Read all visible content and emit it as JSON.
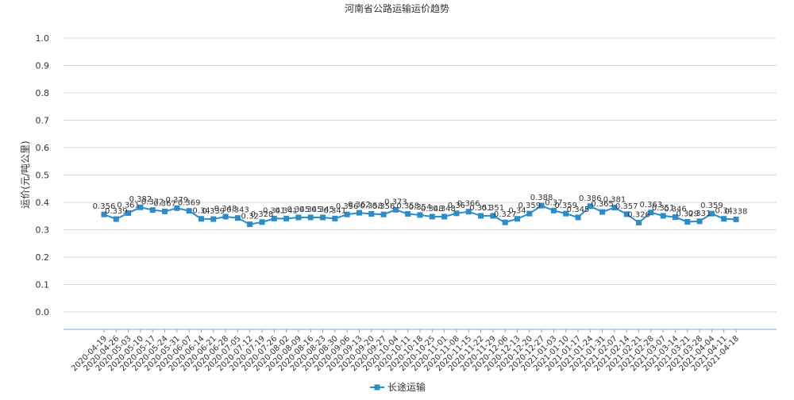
{
  "chart_data": {
    "type": "line",
    "title": "河南省公路运输运价趋势",
    "ylabel": "运价(元/吨公里)",
    "xlabel": "",
    "ylim": [
      -0.0,
      1.0
    ],
    "yticks": [
      "0.0",
      "0.1",
      "0.2",
      "0.3",
      "0.4",
      "0.5",
      "0.6",
      "0.7",
      "0.8",
      "0.9",
      "1.0"
    ],
    "grid": true,
    "legend": "bottom-center",
    "colors": {
      "series": "#2a8ccb",
      "grid": "#d9d9d9",
      "axis": "#7fa6c9",
      "text": "#333333"
    },
    "tick_labels": [
      "2020-04-19",
      "2020-04-26",
      "2020-05-03",
      "2020-05-10",
      "2020-05-17",
      "2020-05-24",
      "2020-05-31",
      "2020-06-07",
      "2020-06-14",
      "2020-06-21",
      "2020-06-28",
      "2020-07-05",
      "2020-07-12",
      "2020-07-19",
      "2020-07-26",
      "2020-08-02",
      "2020-08-09",
      "2020-08-16",
      "2020-08-23",
      "2020-08-30",
      "2020-09-06",
      "2020-09-13",
      "2020-09-20",
      "2020-09-27",
      "2020-10-04",
      "2020-10-11",
      "2020-10-18",
      "2020-10-25",
      "2020-11-01",
      "2020-11-08",
      "2020-11-15",
      "2020-11-22",
      "2020-11-29",
      "2020-12-06",
      "2020-12-13",
      "2020-12-20",
      "2020-12-27",
      "2021-01-03",
      "2021-01-10",
      "2021-01-17",
      "2021-01-24",
      "2021-01-31",
      "2021-02-07",
      "2021-02-14",
      "2021-02-21",
      "2021-02-28",
      "2021-03-07",
      "2021-03-14",
      "2021-03-21",
      "2021-03-28",
      "2021-04-04",
      "2021-04-11",
      "2021-04-18"
    ],
    "series": [
      {
        "name": "长途运输",
        "x": [
          "2020-04-19",
          "2020-04-26",
          "2020-05-03",
          "2020-05-10",
          "2020-05-17",
          "2020-05-24",
          "2020-05-31",
          "2020-06-07",
          "2020-06-14",
          "2020-06-21",
          "2020-06-28",
          "2020-07-05",
          "2020-07-12",
          "2020-07-19",
          "2020-07-26",
          "2020-08-02",
          "2020-08-09",
          "2020-08-16",
          "2020-08-23",
          "2020-08-30",
          "2020-09-06",
          "2020-09-13",
          "2020-09-20",
          "2020-09-27",
          "2020-10-04",
          "2020-10-11",
          "2020-10-18",
          "2020-10-25",
          "2020-11-01",
          "2020-11-08",
          "2020-11-15",
          "2020-11-22",
          "2020-11-29",
          "2020-12-06",
          "2020-12-13",
          "2020-12-20",
          "2020-12-27",
          "2021-01-03",
          "2021-01-10",
          "2021-01-17",
          "2021-01-24",
          "2021-01-31",
          "2021-02-07",
          "2021-02-14",
          "2021-02-21",
          "2021-02-28",
          "2021-03-07",
          "2021-03-14",
          "2021-03-21",
          "2021-03-28",
          "2021-04-04",
          "2021-04-11",
          "2021-04-18"
        ],
        "values": [
          0.356,
          0.339,
          0.361,
          0.382,
          0.372,
          0.367,
          0.379,
          0.369,
          0.34,
          0.339,
          0.348,
          0.343,
          0.32,
          0.328,
          0.341,
          0.341,
          0.345,
          0.345,
          0.345,
          0.341,
          0.356,
          0.362,
          0.358,
          0.356,
          0.373,
          0.358,
          0.354,
          0.348,
          0.348,
          0.36,
          0.366,
          0.351,
          0.351,
          0.327,
          0.34,
          0.359,
          0.388,
          0.37,
          0.359,
          0.345,
          0.386,
          0.365,
          0.381,
          0.357,
          0.326,
          0.363,
          0.351,
          0.346,
          0.329,
          0.331,
          0.359,
          0.34,
          0.338
        ],
        "labels": [
          "0.356",
          "0.339",
          "0.361",
          "0.382",
          "0.372",
          "0.367",
          "0.379",
          "0.369",
          "0.34",
          "0.339",
          "0.348",
          "0.343",
          "0.32",
          "0.328",
          "0.341",
          "0.341",
          "0.345",
          "0.345",
          "0.345",
          "0.341",
          "0.356",
          "0.362",
          "0.358",
          "0.356",
          "0.373",
          "0.358",
          "0.354",
          "0.348",
          "0.348",
          "0.36",
          "0.366",
          "0.351",
          "0.351",
          "0.327",
          "0.34",
          "0.359",
          "0.388",
          "0.37",
          "0.359",
          "0.345",
          "0.386",
          "0.365",
          "0.381",
          "0.357",
          "0.326",
          "0.363",
          "0.351",
          "0.346",
          "0.329",
          "0.331",
          "0.359",
          "0.34",
          "0.338"
        ]
      }
    ]
  }
}
